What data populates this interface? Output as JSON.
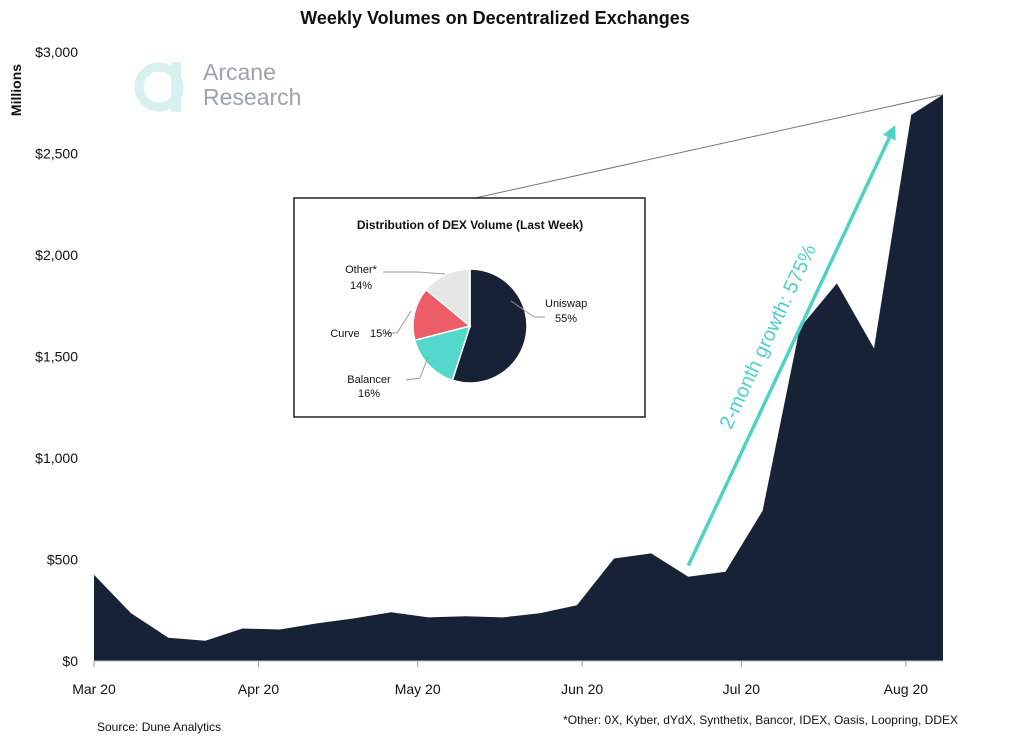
{
  "chart_data": {
    "type": "area",
    "title": "Weekly Volumes on Decentralized Exchanges",
    "ylabel": "Millions",
    "ylim": [
      0,
      3000
    ],
    "yticks": [
      {
        "value": 0,
        "label": "$0"
      },
      {
        "value": 500,
        "label": "$500"
      },
      {
        "value": 1000,
        "label": "$1,000"
      },
      {
        "value": 1500,
        "label": "$1,500"
      },
      {
        "value": 2000,
        "label": "$2,000"
      },
      {
        "value": 2500,
        "label": "$2,500"
      },
      {
        "value": 3000,
        "label": "$3,000"
      }
    ],
    "xticks": [
      {
        "date": "2020-03-01",
        "label": "Mar 20"
      },
      {
        "date": "2020-04-01",
        "label": "Apr 20"
      },
      {
        "date": "2020-05-01",
        "label": "May 20"
      },
      {
        "date": "2020-06-01",
        "label": "Jun 20"
      },
      {
        "date": "2020-07-01",
        "label": "Jul 20"
      },
      {
        "date": "2020-08-01",
        "label": "Aug 20"
      }
    ],
    "xlim": [
      "2020-03-01",
      "2020-08-08"
    ],
    "series": [
      {
        "color": "#172236",
        "points": [
          {
            "x": "2020-03-01",
            "y": 425
          },
          {
            "x": "2020-03-08",
            "y": 235
          },
          {
            "x": "2020-03-15",
            "y": 115
          },
          {
            "x": "2020-03-22",
            "y": 100
          },
          {
            "x": "2020-03-29",
            "y": 160
          },
          {
            "x": "2020-04-05",
            "y": 155
          },
          {
            "x": "2020-04-12",
            "y": 185
          },
          {
            "x": "2020-04-19",
            "y": 210
          },
          {
            "x": "2020-04-26",
            "y": 240
          },
          {
            "x": "2020-05-03",
            "y": 215
          },
          {
            "x": "2020-05-10",
            "y": 220
          },
          {
            "x": "2020-05-17",
            "y": 215
          },
          {
            "x": "2020-05-24",
            "y": 235
          },
          {
            "x": "2020-05-31",
            "y": 275
          },
          {
            "x": "2020-06-07",
            "y": 505
          },
          {
            "x": "2020-06-14",
            "y": 530
          },
          {
            "x": "2020-06-21",
            "y": 415
          },
          {
            "x": "2020-06-28",
            "y": 440
          },
          {
            "x": "2020-07-05",
            "y": 740
          },
          {
            "x": "2020-07-12",
            "y": 1640
          },
          {
            "x": "2020-07-19",
            "y": 1860
          },
          {
            "x": "2020-07-26",
            "y": 1540
          },
          {
            "x": "2020-08-02",
            "y": 2690
          },
          {
            "x": "2020-08-08",
            "y": 2790
          }
        ]
      }
    ],
    "annotation": {
      "text": "2-month growth: 575%",
      "color": "#4fd1c5",
      "from": {
        "x": "2020-06-21",
        "y": 470
      },
      "to": {
        "x": "2020-07-30",
        "y": 2640
      }
    },
    "inset": {
      "type": "pie",
      "title": "Distribution of DEX Volume (Last Week)",
      "slices": [
        {
          "name": "Uniswap",
          "value": 55,
          "label_pct": "55%",
          "color": "#172236"
        },
        {
          "name": "Balancer",
          "value": 16,
          "label_pct": "16%",
          "color": "#54d8cc"
        },
        {
          "name": "Curve",
          "value": 15,
          "label_pct": "15%",
          "color": "#ec5d67"
        },
        {
          "name": "Other*",
          "value": 14,
          "label_pct": "14%",
          "color": "#e6e6e6"
        }
      ]
    }
  },
  "logo": {
    "mark": "a",
    "line1": "Arcane",
    "line2": "Research"
  },
  "footer": {
    "source": "Source: Dune Analytics",
    "note": "*Other: 0X, Kyber, dYdX, Synthetix, Bancor, IDEX, Oasis, Loopring, DDEX"
  }
}
